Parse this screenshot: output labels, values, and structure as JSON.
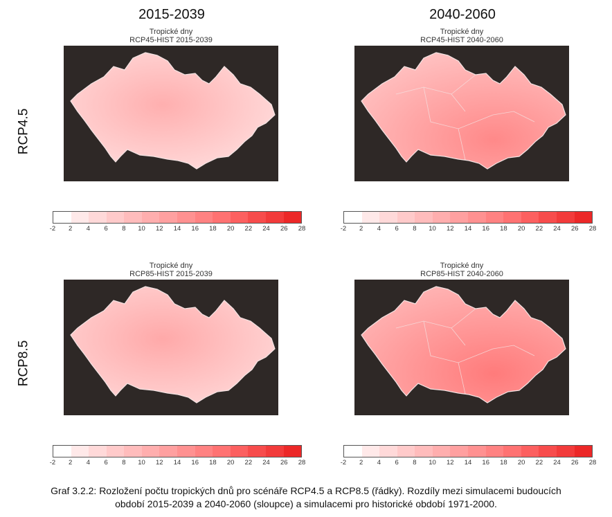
{
  "columns": [
    "2015-2039",
    "2040-2060"
  ],
  "rows": [
    "RCP4.5",
    "RCP8.5"
  ],
  "panels": [
    {
      "title": "Tropické dny",
      "subtitle": "RCP45-HIST 2015-2039",
      "level": 0.18
    },
    {
      "title": "Tropické dny",
      "subtitle": "RCP45-HIST 2040-2060",
      "level": 0.45
    },
    {
      "title": "Tropické dny",
      "subtitle": "RCP85-HIST 2015-2039",
      "level": 0.22
    },
    {
      "title": "Tropické dny",
      "subtitle": "RCP85-HIST 2040-2060",
      "level": 0.55
    }
  ],
  "colorbar": {
    "ticks": [
      "-2",
      "2",
      "4",
      "6",
      "8",
      "10",
      "12",
      "14",
      "16",
      "18",
      "20",
      "22",
      "24",
      "26",
      "28"
    ],
    "colors": [
      "#ffffff",
      "#ffe9e9",
      "#ffd9d9",
      "#ffcaca",
      "#ffbcbc",
      "#ffaeae",
      "#ffa0a0",
      "#ff9191",
      "#ff8282",
      "#ff7272",
      "#fc6060",
      "#f74c4c",
      "#f23b3b",
      "#ec2828"
    ]
  },
  "caption": {
    "line1": "Graf 3.2.2: Rozložení počtu tropických dnů pro scénáře RCP4.5 a RCP8.5 (řádky). Rozdíly mezi simulacemi budoucích",
    "line2": "období 2015-2039 a 2040-2060 (sloupce) a simulacemi pro historické období 1971-2000."
  },
  "map_colors": {
    "background": "#2e2826",
    "border": "#f4e4e4"
  }
}
